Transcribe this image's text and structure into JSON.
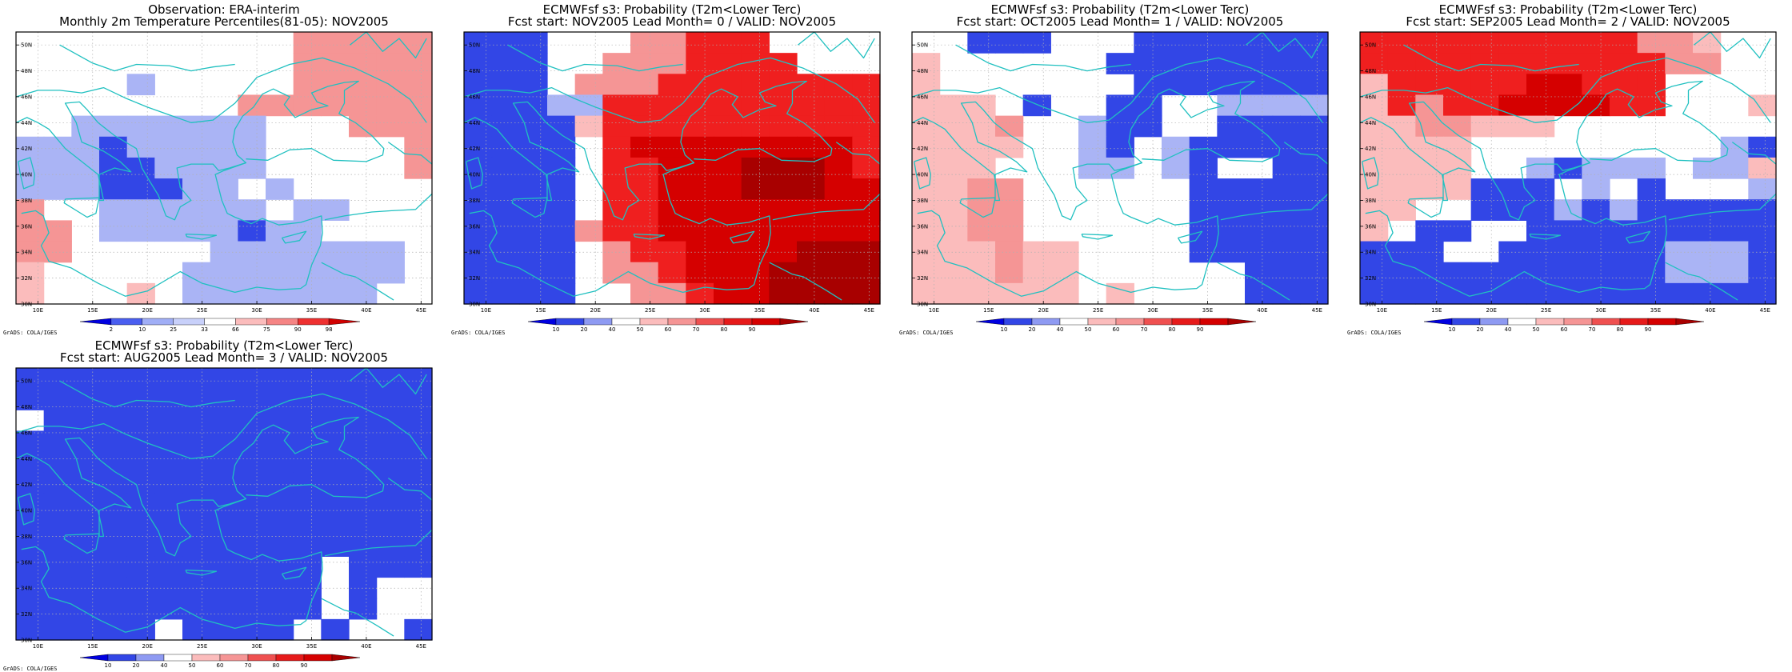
{
  "panels": [
    {
      "title1": "Observation: ERA-interim",
      "title2": "Monthly 2m Temperature Percentiles(81-05): NOV2005",
      "scale": "obs",
      "colorbar_labels": [
        "2",
        "10",
        "25",
        "33",
        "66",
        "75",
        "90",
        "98"
      ],
      "grid": [
        "..........PPPPP",
        "..........PPPPP",
        "....b.....PPPPP",
        "........PPPPPPP",
        "..bbbbbbb...PPP",
        "bbbBbbbbb.....P",
        "bbbBBbbbb.....P",
        "bbbBBBbb.b.....",
        "P..bbbbbb.bb...",
        "PP.bbbbbBbb....",
        "PP.....bbbbbbb.",
        "p.....bbbbbbbb.",
        "p...p.bbbbbbb.."
      ]
    },
    {
      "title1": "ECMWFsf s3: Probability (T2m<Lower Terc)",
      "title2": "Fcst start: NOV2005  Lead Month= 0 / VALID: NOV2005",
      "scale": "prob",
      "colorbar_labels": [
        "10",
        "20",
        "40",
        "50",
        "60",
        "70",
        "80",
        "90"
      ],
      "grid": [
        "BBB...PPRRR....",
        "BBB..PPPRRRR...",
        "BBB.PPPRRRRRRRR",
        "BBBbbRRRRRRRRRR",
        "BBBBpRRRRRRRRRR",
        "BBBB.RSSSSSSSSR",
        "BBBB.RRSSSDDDSR",
        "BBBB.RRSSSDDDSS",
        "BBBB.RRSSSSSSSS",
        "BBBBPRRSSSSSSSS",
        "BBBB.PRRSSSSDDD",
        "BBBB.PPRSSSDDDD",
        "BBBB..PPRSSDDDD"
      ]
    },
    {
      "title1": "ECMWFsf s3: Probability (T2m<Lower Terc)",
      "title2": "Fcst start: OCT2005  Lead Month= 1 / VALID: NOV2005",
      "scale": "prob",
      "colorbar_labels": [
        "10",
        "20",
        "40",
        "50",
        "60",
        "70",
        "80",
        "90"
      ],
      "grid": [
        "..BBB...BBBBBBB",
        "p......BBBBBBBB",
        "p.......BBBBBBB",
        "ppp.B..BB..bbbb",
        "pppP..bBB..BBBB",
        "pppp..bB.bBBBBB",
        "ppp...bb.bB..BB",
        "ppPP......BBBBB",
        "ppPP......BBBBB",
        "ppPP......BBBBB",
        "pppPpp....BBBBB",
        "pppPpp......BBB",
        "pppppp.p....BBB"
      ]
    },
    {
      "title1": "ECMWFsf s3: Probability (T2m<Lower Terc)",
      "title2": "Fcst start: SEP2005  Lead Month= 2 / VALID: NOV2005",
      "scale": "prob",
      "colorbar_labels": [
        "10",
        "20",
        "40",
        "50",
        "60",
        "70",
        "80",
        "90"
      ],
      "grid": [
        "RRRRRRRRRRPPp..",
        "RRRRRRRRRRRPP..",
        "pRRRRRSSRRR....",
        "pRPRRSSSSRR...p",
        "ppPPppp........",
        "pppp.........bB",
        "pppp..bBbbb.bbp",
        "ppppBBB.b.B...b",
        "pp..BBBbBbBBBBB",
        "p.BB..BBBBBBBBB",
        "BBB..BBBBBBbbbB",
        "BBBBBBBBBBBbbbB",
        "BBBBBBBBBBBBBBB"
      ]
    },
    {
      "title1": "ECMWFsf s3: Probability (T2m<Lower Terc)",
      "title2": "Fcst start: AUG2005  Lead Month= 3 / VALID: NOV2005",
      "scale": "prob",
      "colorbar_labels": [
        "10",
        "20",
        "40",
        "50",
        "60",
        "70",
        "80",
        "90"
      ],
      "grid": [
        "BBBBBBBBBBBBBBB",
        "BBBBBBBBBBBBBBB",
        ".BBBBBBBBBBBBBB",
        "BBBBBBBBBBBBBBB",
        "BBBBBBBBBBBBBBB",
        "BBBBBBBBBBBBBBB",
        "BBBBBBBBBBBBBBB",
        "BBBBBBBBBBBBBBB",
        "BBBBBBBBBBBBBBB",
        "BBBBBBBBBBB.BBB",
        "BBBBBBBBBBB.B..",
        "BBBBBBBBBBB.B..",
        "BBBBB.BBBB.B..B"
      ]
    }
  ],
  "grid_legend": {
    "D": "#a80000",
    "S": "#d50000",
    "R": "#ef1f1f",
    "P": "#f59595",
    "p": "#fbbcbc",
    ".": "#ffffff",
    "b": "#aab4f5",
    "B": "#3246e6"
  },
  "lon_labels": [
    "10E",
    "15E",
    "20E",
    "25E",
    "30E",
    "35E",
    "40E",
    "45E"
  ],
  "lat_labels": [
    "50N",
    "48N",
    "46N",
    "44N",
    "42N",
    "40N",
    "38N",
    "36N",
    "34N",
    "32N",
    "30N"
  ],
  "credit": "GrADS: COLA/IGES",
  "colors": {
    "coastline": "#20c0c0",
    "gridline": "#b0b0b0",
    "obs_scale": [
      "#0000e0",
      "#4a5ef0",
      "#a0aef6",
      "#c8d0fa",
      "#ffffff",
      "#fbbcbc",
      "#f58484",
      "#ee3030",
      "#d00000"
    ],
    "prob_scale": [
      "#0000e0",
      "#3246e6",
      "#8e9af2",
      "#ffffff",
      "#fbbcbc",
      "#f59595",
      "#ef5050",
      "#e61a1a",
      "#d50000",
      "#a80000"
    ]
  }
}
